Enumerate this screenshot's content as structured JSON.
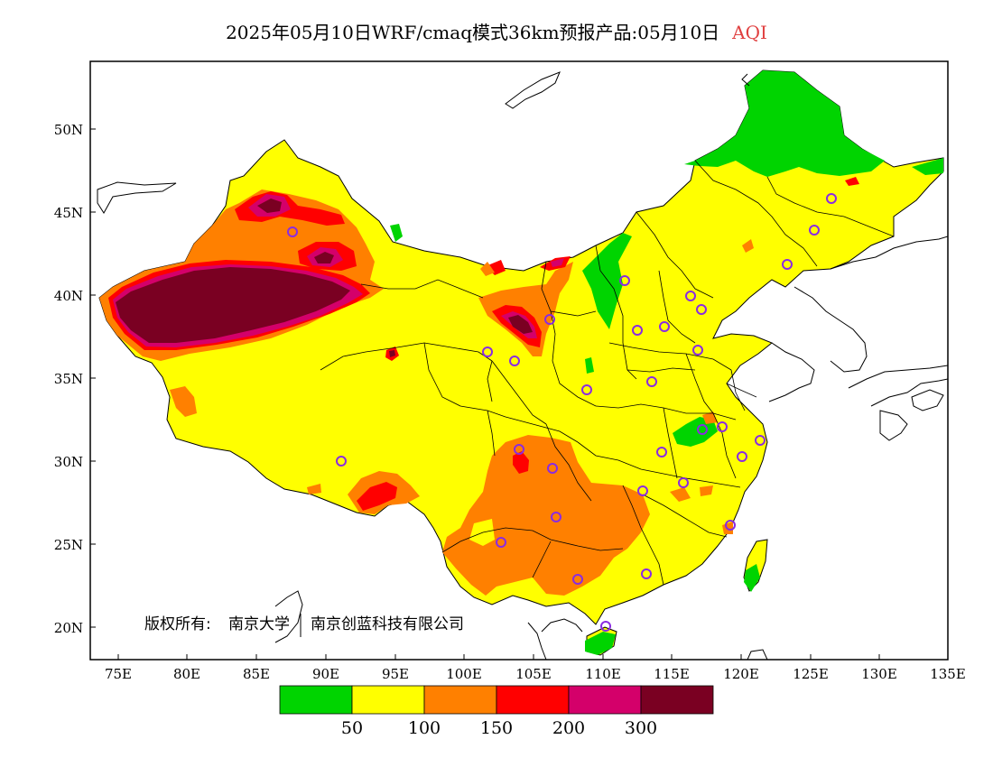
{
  "title": {
    "main": "2025年05月10日WRF/cmaq模式36km预报产品:05月10日",
    "variable": "AQI"
  },
  "axes": {
    "y_ticks": [
      "50N",
      "45N",
      "40N",
      "35N",
      "30N",
      "25N",
      "20N"
    ],
    "x_ticks": [
      "75E",
      "80E",
      "85E",
      "90E",
      "95E",
      "100E",
      "105E",
      "110E",
      "115E",
      "120E",
      "125E",
      "130E",
      "135E"
    ]
  },
  "copyright": {
    "label": "版权所有:",
    "org1": "南京大学",
    "org2": "南京创蓝科技有限公司"
  },
  "legend": {
    "colors": [
      "#00d400",
      "#ffff00",
      "#ff8000",
      "#ff0000",
      "#d4006a",
      "#7a0022"
    ],
    "labels": [
      "50",
      "100",
      "150",
      "200",
      "300"
    ]
  },
  "colors": {
    "good": "#00d400",
    "moderate": "#ffff00",
    "sensitive": "#ff8000",
    "unhealthy": "#ff0000",
    "very_unhealthy": "#d4006a",
    "hazardous": "#7a0022",
    "station_marker": "#8a2be2"
  }
}
